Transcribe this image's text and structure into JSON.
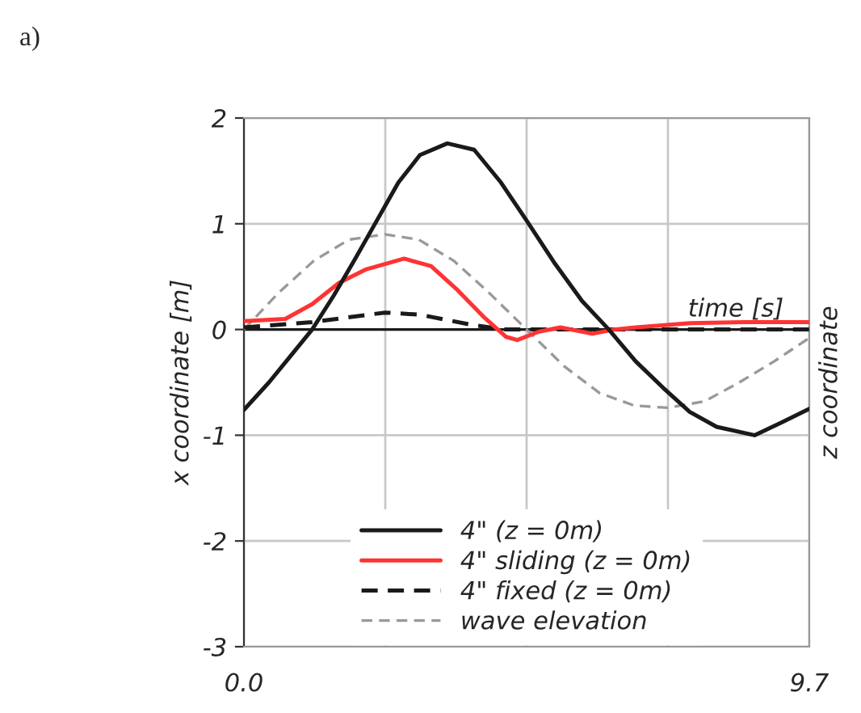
{
  "chart_data": {
    "type": "line",
    "xlabel": "time [s]",
    "ylabel": "x coordinate [m]",
    "y2label": "z coordinate",
    "annotations": [
      "a)"
    ],
    "xlim": [
      0,
      9.7
    ],
    "xticks": [
      {
        "value": 0,
        "label": "0.0"
      },
      {
        "value": 2.425,
        "label": null
      },
      {
        "value": 4.85,
        "label": null
      },
      {
        "value": 7.275,
        "label": null
      },
      {
        "value": 9.7,
        "label": "9.7"
      }
    ],
    "ylim": [
      -3,
      2
    ],
    "yticks": [
      -3,
      -2,
      -1,
      0,
      1,
      2
    ],
    "grid": true,
    "legend": "bottom",
    "ref_lines": [
      {
        "axis": "y",
        "value": 0,
        "label": null,
        "color": "#1a1a1a"
      }
    ],
    "series": [
      {
        "name": "4\" (z = 0m)",
        "color": "#1a1a1a",
        "line_style": "solid",
        "x": [
          0,
          0.43,
          0.8,
          1.17,
          1.54,
          1.91,
          2.28,
          2.65,
          3.02,
          3.49,
          3.95,
          4.41,
          4.85,
          5.34,
          5.8,
          6.26,
          6.72,
          7.19,
          7.65,
          8.11,
          8.76,
          9.22,
          9.7
        ],
        "values": [
          -0.76,
          -0.5,
          -0.25,
          0,
          0.32,
          0.67,
          1.03,
          1.39,
          1.65,
          1.76,
          1.7,
          1.39,
          1.03,
          0.62,
          0.27,
          0,
          -0.3,
          -0.55,
          -0.78,
          -0.92,
          -1.0,
          -0.88,
          -0.75
        ]
      },
      {
        "name": "4\" sliding (z = 0m)",
        "color": "#ff3333",
        "line_style": "solid",
        "x": [
          0,
          0.71,
          1.17,
          1.63,
          2.1,
          2.75,
          3.21,
          3.67,
          4.13,
          4.5,
          4.69,
          5.06,
          5.43,
          5.98,
          6.35,
          6.72,
          7.65,
          8.57,
          9.7
        ],
        "values": [
          0.08,
          0.1,
          0.24,
          0.44,
          0.57,
          0.67,
          0.6,
          0.37,
          0.11,
          -0.07,
          -0.1,
          -0.02,
          0.02,
          -0.04,
          0,
          0.02,
          0.06,
          0.07,
          0.07
        ]
      },
      {
        "name": "4\" fixed (z = 0m)",
        "color": "#1a1a1a",
        "line_style": "dashed",
        "x": [
          0,
          1.17,
          2.42,
          3.02,
          3.95,
          4.5,
          6.0,
          8.0,
          9.7
        ],
        "values": [
          0.02,
          0.07,
          0.16,
          0.14,
          0.04,
          0,
          0,
          0,
          0
        ]
      },
      {
        "name": "wave elevation",
        "color": "#999999",
        "line_style": "dashed",
        "x": [
          0,
          0.6,
          1.2,
          1.8,
          2.42,
          3.0,
          3.6,
          4.2,
          4.85,
          5.5,
          6.1,
          6.7,
          7.28,
          7.9,
          8.5,
          9.1,
          9.7
        ],
        "values": [
          0,
          0.35,
          0.65,
          0.85,
          0.9,
          0.85,
          0.65,
          0.35,
          0,
          -0.35,
          -0.6,
          -0.72,
          -0.74,
          -0.68,
          -0.5,
          -0.3,
          -0.08
        ]
      }
    ]
  }
}
